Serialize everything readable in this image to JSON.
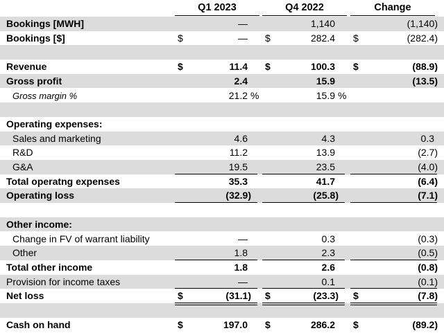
{
  "headers": [
    "Q1 2023",
    "Q4 2022",
    "Change"
  ],
  "rows": [
    {
      "label": "Bookings [MWH]",
      "style": "bold",
      "shade": true,
      "vals": [
        {
          "v": "—"
        },
        {
          "v": "1,140"
        },
        {
          "v": "(1,140)"
        }
      ]
    },
    {
      "label": "Bookings [$]",
      "style": "bold",
      "shade": false,
      "vals": [
        {
          "d": "$",
          "v": "—"
        },
        {
          "d": "$",
          "v": "282.4"
        },
        {
          "d": "$",
          "v": "(282.4)"
        }
      ]
    },
    {
      "label": "",
      "style": "blank",
      "shade": true,
      "vals": []
    },
    {
      "label": "Revenue",
      "style": "bold",
      "shade": false,
      "bold_values": true,
      "vals": [
        {
          "d": "$",
          "v": "11.4"
        },
        {
          "d": "$",
          "v": "100.3"
        },
        {
          "d": "$",
          "v": "(88.9)"
        }
      ]
    },
    {
      "label": "Gross profit",
      "style": "bold",
      "shade": true,
      "bold_values": true,
      "vals": [
        {
          "v": "2.4"
        },
        {
          "v": "15.9"
        },
        {
          "v": "(13.5)"
        }
      ]
    },
    {
      "label": "Gross margin %",
      "style": "italic",
      "shade": false,
      "vals": [
        {
          "v": "21.2",
          "p": "%"
        },
        {
          "v": "15.9",
          "p": "%"
        },
        {
          "v": ""
        }
      ]
    },
    {
      "label": "",
      "style": "blank",
      "shade": true,
      "vals": []
    },
    {
      "label": "Operating expenses:",
      "style": "bold",
      "shade": false,
      "vals": []
    },
    {
      "label": "Sales and marketing",
      "style": "indent",
      "shade": true,
      "vals": [
        {
          "v": "4.6"
        },
        {
          "v": "4.3"
        },
        {
          "v": "0.3"
        }
      ]
    },
    {
      "label": "R&D",
      "style": "indent",
      "shade": false,
      "vals": [
        {
          "v": "11.2"
        },
        {
          "v": "13.9"
        },
        {
          "v": "(2.7)"
        }
      ]
    },
    {
      "label": "G&A",
      "style": "indent",
      "shade": true,
      "vals": [
        {
          "v": "19.5"
        },
        {
          "v": "23.5"
        },
        {
          "v": "(4.0)"
        }
      ]
    },
    {
      "label": "Total operatng expenses",
      "style": "bold",
      "shade": false,
      "bold_values": true,
      "vals": [
        {
          "v": "35.3"
        },
        {
          "v": "41.7"
        },
        {
          "v": "(6.4)"
        }
      ]
    },
    {
      "label": "Operating loss",
      "style": "bold",
      "shade": true,
      "bold_values": true,
      "vals": [
        {
          "v": "(32.9)"
        },
        {
          "v": "(25.8)"
        },
        {
          "v": "(7.1)"
        }
      ]
    },
    {
      "label": "",
      "style": "blank",
      "shade": false,
      "vals": []
    },
    {
      "label": "Other income:",
      "style": "bold",
      "shade": true,
      "vals": []
    },
    {
      "label": "Change in FV of warrant liability",
      "style": "indent",
      "shade": false,
      "vals": [
        {
          "v": "—"
        },
        {
          "v": "0.3"
        },
        {
          "v": "(0.3)"
        }
      ]
    },
    {
      "label": "Other",
      "style": "indent",
      "shade": true,
      "vals": [
        {
          "v": "1.8"
        },
        {
          "v": "2.3"
        },
        {
          "v": "(0.5)"
        }
      ]
    },
    {
      "label": "Total other income",
      "style": "bold",
      "shade": false,
      "bold_values": true,
      "vals": [
        {
          "v": "1.8"
        },
        {
          "v": "2.6"
        },
        {
          "v": "(0.8)"
        }
      ]
    },
    {
      "label": "Provision for income taxes",
      "style": "plain",
      "shade": true,
      "vals": [
        {
          "v": "—"
        },
        {
          "v": "0.1"
        },
        {
          "v": "(0.1)"
        }
      ]
    },
    {
      "label": "Net loss",
      "style": "bold",
      "shade": false,
      "bold_values": true,
      "vals": [
        {
          "d": "$",
          "v": "(31.1)"
        },
        {
          "d": "$",
          "v": "(23.3)"
        },
        {
          "d": "$",
          "v": "(7.8)"
        }
      ]
    },
    {
      "label": "",
      "style": "blank",
      "shade": true,
      "vals": []
    },
    {
      "label": "Cash on hand",
      "style": "bold",
      "shade": false,
      "bold_values": true,
      "vals": [
        {
          "d": "$",
          "v": "197.0"
        },
        {
          "d": "$",
          "v": "286.2"
        },
        {
          "d": "$",
          "v": "(89.2)"
        }
      ]
    }
  ]
}
